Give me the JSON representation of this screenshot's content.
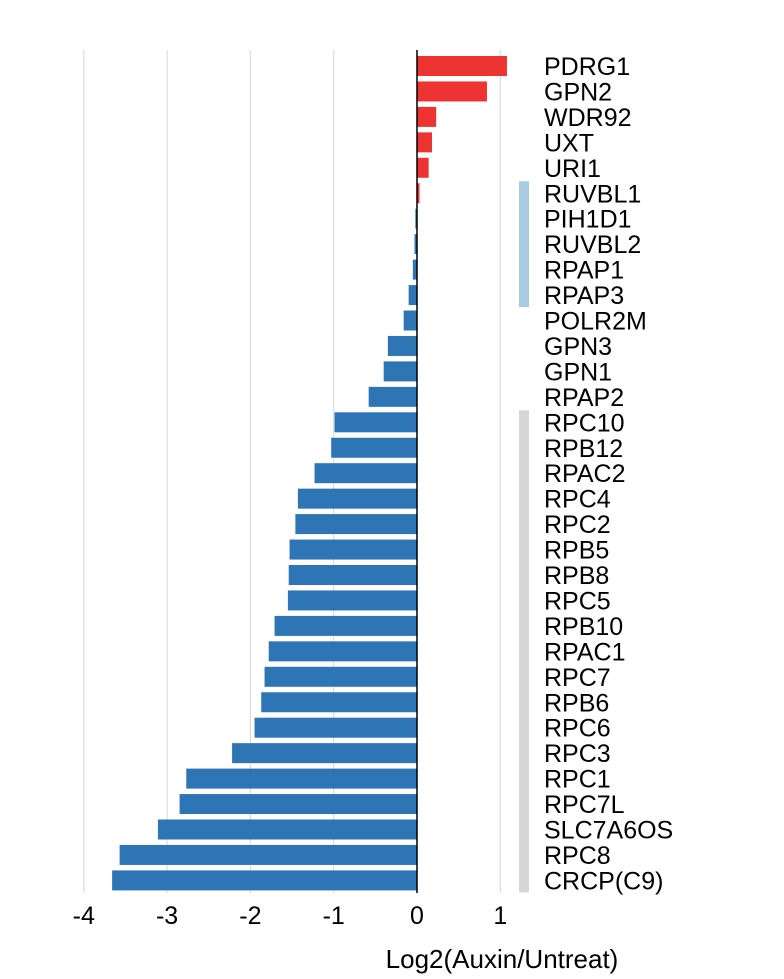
{
  "chart_data": {
    "type": "bar",
    "orientation": "horizontal",
    "title": "",
    "xlabel": "Log2(Auxin/Untreat)",
    "ylabel": "",
    "xlim": [
      -4,
      1
    ],
    "xticks": [
      -4,
      -3,
      -2,
      -1,
      0,
      1
    ],
    "xtick_labels": [
      "-4",
      "-3",
      "-2",
      "-1",
      "0",
      "1"
    ],
    "grid": "vertical gridlines",
    "colors": {
      "positive": "#ee3333",
      "negative": "#2e75b6",
      "bracket_light_blue": "#a8cde3",
      "bracket_gray": "#d6d6d6"
    },
    "categories": [
      "PDRG1",
      "GPN2",
      "WDR92",
      "UXT",
      "URI1",
      "RUVBL1",
      "PIH1D1",
      "RUVBL2",
      "RPAP1",
      "RPAP3",
      "POLR2M",
      "GPN3",
      "GPN1",
      "RPAP2",
      "RPC10",
      "RPB12",
      "RPAC2",
      "RPC4",
      "RPC2",
      "RPB5",
      "RPB8",
      "RPC5",
      "RPB10",
      "RPAC1",
      "RPC7",
      "RPB6",
      "RPC6",
      "RPC3",
      "RPC1",
      "RPC7L",
      "SLC7A6OS",
      "RPC8",
      "CRCP(C9)"
    ],
    "values": [
      1.08,
      0.84,
      0.23,
      0.18,
      0.14,
      0.03,
      -0.02,
      -0.03,
      -0.05,
      -0.1,
      -0.16,
      -0.35,
      -0.4,
      -0.58,
      -0.99,
      -1.03,
      -1.23,
      -1.43,
      -1.46,
      -1.53,
      -1.54,
      -1.55,
      -1.71,
      -1.78,
      -1.83,
      -1.87,
      -1.95,
      -2.22,
      -2.77,
      -2.85,
      -3.11,
      -3.57,
      -3.66
    ],
    "groups": [
      {
        "from": "RUVBL1",
        "to": "RPAP3",
        "color": "#a8cde3"
      },
      {
        "from": "RPC10",
        "to": "CRCP(C9)",
        "color": "#d6d6d6"
      }
    ]
  }
}
